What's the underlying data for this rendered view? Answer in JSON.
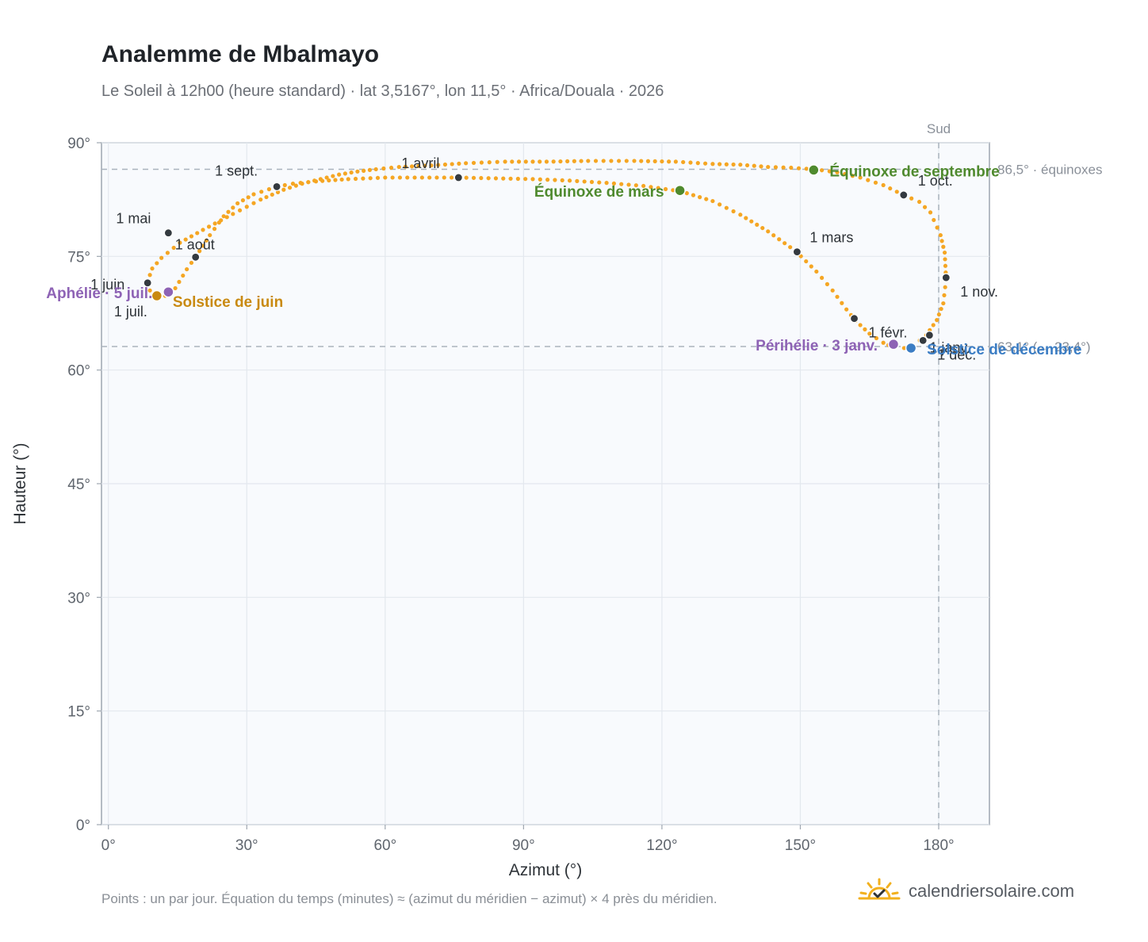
{
  "title": "Analemme de Mbalmayo",
  "subtitle": "Le Soleil à 12h00 (heure standard) · lat 3,5167°, lon 11,5° · Africa/Douala · 2026",
  "footnote": "Points : un par jour. Équation du temps (minutes) ≈ (azimut du méridien − azimut) × 4 près du méridien.",
  "brand": {
    "text": "calendriersolaire.com",
    "icon": "sun-check-icon"
  },
  "colors": {
    "curve": "#f5a623",
    "month_marker": "#343a40",
    "equinox": "#4f8a2e",
    "solstice_june": "#c98a12",
    "solstice_december": "#3b7dc4",
    "apsis": "#8e63b5",
    "reference_line": "#aab3bd"
  },
  "chart_data": {
    "type": "scatter",
    "xlabel": "Azimut (°)",
    "ylabel": "Hauteur (°)",
    "xlim": [
      -1.5,
      191
    ],
    "ylim": [
      0,
      90
    ],
    "xticks": [
      {
        "value": 0,
        "label": "0°"
      },
      {
        "value": 30,
        "label": "30°"
      },
      {
        "value": 60,
        "label": "60°"
      },
      {
        "value": 90,
        "label": "90°"
      },
      {
        "value": 120,
        "label": "120°"
      },
      {
        "value": 150,
        "label": "150°"
      },
      {
        "value": 180,
        "label": "180°"
      }
    ],
    "yticks": [
      {
        "value": 0,
        "label": "0°"
      },
      {
        "value": 15,
        "label": "15°"
      },
      {
        "value": 30,
        "label": "30°"
      },
      {
        "value": 45,
        "label": "45°"
      },
      {
        "value": 60,
        "label": "60°"
      },
      {
        "value": 75,
        "label": "75°"
      },
      {
        "value": 90,
        "label": "90°"
      }
    ],
    "grid": true,
    "reference_lines": [
      {
        "orientation": "vertical",
        "x": 180,
        "label": "Sud"
      },
      {
        "orientation": "horizontal",
        "y": 86.5,
        "label": "86,5° · équinoxes"
      },
      {
        "orientation": "horizontal",
        "y": 63.1,
        "label": "63,1° (→ 23,4°)"
      }
    ],
    "daily_path": [
      [
        172.5,
        62.9
      ],
      [
        174.5,
        63.2
      ],
      [
        177.3,
        64.6
      ],
      [
        179.6,
        66.6
      ],
      [
        181.0,
        68.8
      ],
      [
        181.6,
        72.0
      ],
      [
        181.3,
        75.5
      ],
      [
        180.4,
        77.8
      ],
      [
        178.2,
        80.8
      ],
      [
        175.8,
        82.2
      ],
      [
        172.4,
        83.1
      ],
      [
        168.0,
        84.4
      ],
      [
        163.0,
        85.4
      ],
      [
        158.0,
        86.1
      ],
      [
        153.0,
        86.5
      ],
      [
        148.0,
        86.7
      ],
      [
        143.0,
        86.8
      ],
      [
        137.0,
        87.1
      ],
      [
        131.0,
        87.2
      ],
      [
        123.0,
        87.5
      ],
      [
        114.0,
        87.6
      ],
      [
        104.0,
        87.6
      ],
      [
        95.0,
        87.5
      ],
      [
        86.0,
        87.5
      ],
      [
        77.5,
        87.3
      ],
      [
        70.0,
        87.0
      ],
      [
        63.0,
        86.8
      ],
      [
        58.0,
        86.5
      ],
      [
        54.0,
        86.2
      ],
      [
        50.0,
        85.8
      ],
      [
        46.0,
        85.2
      ],
      [
        42.0,
        84.6
      ],
      [
        38.0,
        83.8
      ],
      [
        33.0,
        82.5
      ],
      [
        27.0,
        80.6
      ],
      [
        20.5,
        78.5
      ],
      [
        15.5,
        76.8
      ],
      [
        11.5,
        74.8
      ],
      [
        9.5,
        73.4
      ],
      [
        8.5,
        71.7
      ],
      [
        9.0,
        70.5
      ],
      [
        10.5,
        69.9
      ],
      [
        12.3,
        69.8
      ],
      [
        14.5,
        70.8
      ],
      [
        17.0,
        73.3
      ],
      [
        19.0,
        75.0
      ],
      [
        22.0,
        77.8
      ],
      [
        25.0,
        80.3
      ],
      [
        28.0,
        82.0
      ],
      [
        31.5,
        83.2
      ],
      [
        36.5,
        84.2
      ],
      [
        40.0,
        84.6
      ],
      [
        45.0,
        84.9
      ],
      [
        52.0,
        85.2
      ],
      [
        60.0,
        85.4
      ],
      [
        68.0,
        85.4
      ],
      [
        76.0,
        85.4
      ],
      [
        84.0,
        85.3
      ],
      [
        92.0,
        85.2
      ],
      [
        100.0,
        85.0
      ],
      [
        108.0,
        84.7
      ],
      [
        116.0,
        84.3
      ],
      [
        124.0,
        83.6
      ],
      [
        131.0,
        82.3
      ],
      [
        137.0,
        80.5
      ],
      [
        143.0,
        78.3
      ],
      [
        149.0,
        75.7
      ],
      [
        153.5,
        73.0
      ],
      [
        157.0,
        70.5
      ],
      [
        160.0,
        68.0
      ],
      [
        162.0,
        66.5
      ],
      [
        165.0,
        64.8
      ],
      [
        168.0,
        63.6
      ],
      [
        170.2,
        63.0
      ],
      [
        172.5,
        62.9
      ]
    ],
    "month_markers": [
      {
        "label": "1 janv.",
        "x": 178.0,
        "y": 64.6
      },
      {
        "label": "1 févr.",
        "x": 161.7,
        "y": 66.8
      },
      {
        "label": "1 mars",
        "x": 149.3,
        "y": 75.6
      },
      {
        "label": "1 avril",
        "x": 75.9,
        "y": 85.4
      },
      {
        "label": "1 mai",
        "x": 13.0,
        "y": 78.1
      },
      {
        "label": "1 juin",
        "x": 8.5,
        "y": 71.5
      },
      {
        "label": "1 juil.",
        "x": 10.5,
        "y": 69.8
      },
      {
        "label": "1 août",
        "x": 18.9,
        "y": 74.9
      },
      {
        "label": "1 sept.",
        "x": 36.5,
        "y": 84.2
      },
      {
        "label": "1 oct.",
        "x": 172.4,
        "y": 83.1
      },
      {
        "label": "1 nov.",
        "x": 181.6,
        "y": 72.2
      },
      {
        "label": "1 déc.",
        "x": 176.6,
        "y": 63.9
      }
    ],
    "events": [
      {
        "label": "Équinoxe de mars",
        "x": 123.9,
        "y": 83.7,
        "color_key": "equinox"
      },
      {
        "label": "Équinoxe de septembre",
        "x": 152.9,
        "y": 86.4,
        "color_key": "equinox"
      },
      {
        "label": "Solstice de juin",
        "x": 10.5,
        "y": 69.8,
        "color_key": "solstice_june"
      },
      {
        "label": "Solstice de décembre",
        "x": 174.0,
        "y": 62.9,
        "color_key": "solstice_december"
      },
      {
        "label": "Aphélie · 5 juil.",
        "x": 13.0,
        "y": 70.3,
        "color_key": "apsis"
      },
      {
        "label": "Périhélie · 3 janv.",
        "x": 170.2,
        "y": 63.4,
        "color_key": "apsis"
      }
    ]
  }
}
